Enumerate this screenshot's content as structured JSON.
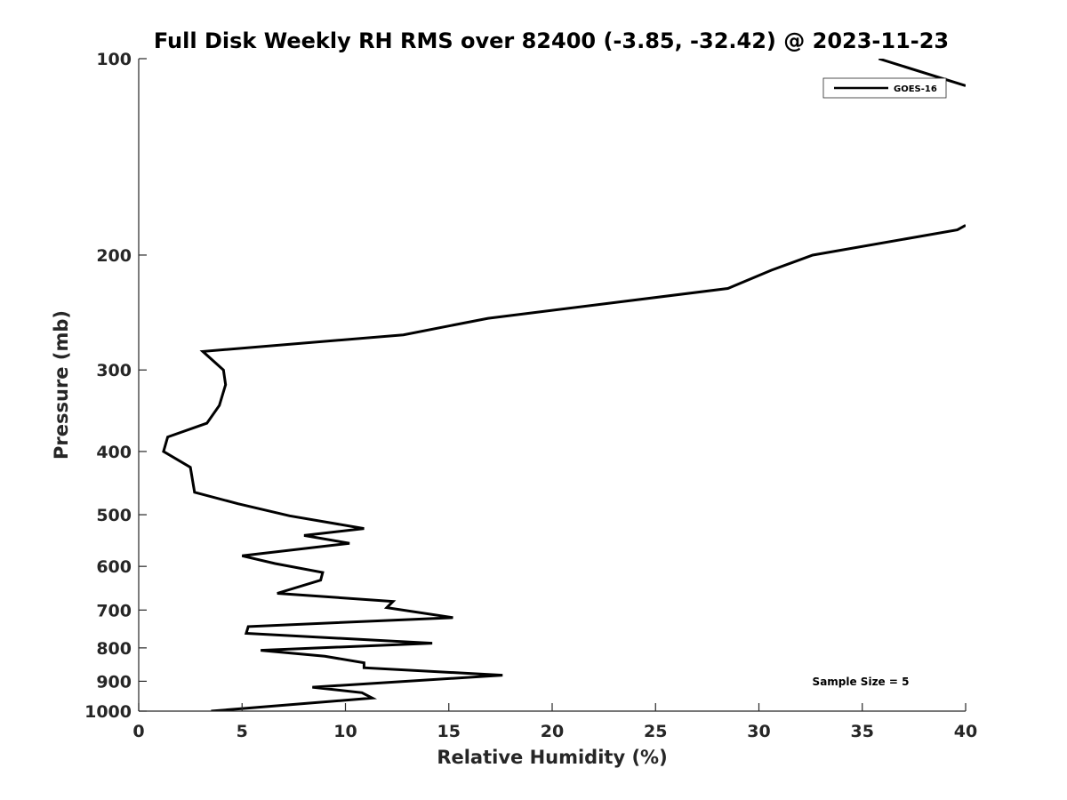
{
  "chart_data": {
    "type": "line",
    "title": "Full Disk Weekly RH RMS over 82400 (-3.85, -32.42) @ 2023-11-23",
    "xlabel": "Relative Humidity (%)",
    "ylabel": "Pressure (mb)",
    "xlim": [
      0,
      40
    ],
    "ylim": [
      100,
      1000
    ],
    "yscale": "log",
    "reversed_y": true,
    "grid": false,
    "x_ticks": [
      0,
      5,
      10,
      15,
      20,
      25,
      30,
      35,
      40
    ],
    "x_tick_labels": [
      "0",
      "5",
      "10",
      "15",
      "20",
      "25",
      "30",
      "35",
      "40"
    ],
    "y_ticks": [
      100,
      200,
      300,
      400,
      500,
      600,
      700,
      800,
      900,
      1000
    ],
    "y_tick_labels": [
      "100",
      "200",
      "300",
      "400",
      "500",
      "600",
      "700",
      "800",
      "900",
      "1000"
    ],
    "legend_position": "top-right",
    "annotation": "Sample Size = 5",
    "series": [
      {
        "name": "GOES-16",
        "color": "#000000",
        "segments": [
          {
            "points": [
              [
                35.8,
                100
              ],
              [
                40,
                110
              ]
            ]
          },
          {
            "points": [
              [
                40,
                180
              ],
              [
                39.6,
                183
              ],
              [
                32.6,
                200
              ],
              [
                30.6,
                211
              ],
              [
                28.5,
                225
              ],
              [
                16.9,
                250
              ],
              [
                12.8,
                265
              ],
              [
                3.1,
                281
              ],
              [
                4.1,
                300
              ],
              [
                4.2,
                316
              ],
              [
                3.9,
                340
              ],
              [
                3.3,
                362
              ],
              [
                1.4,
                380
              ],
              [
                1.2,
                400
              ],
              [
                2.5,
                423
              ],
              [
                2.7,
                462
              ],
              [
                4.8,
                481
              ],
              [
                7.3,
                502
              ],
              [
                10.9,
                525
              ],
              [
                8.0,
                538
              ],
              [
                10.2,
                553
              ],
              [
                5.0,
                578
              ],
              [
                6.6,
                594
              ],
              [
                8.9,
                613
              ],
              [
                8.8,
                630
              ],
              [
                6.7,
                660
              ],
              [
                12.3,
                679
              ],
              [
                12.0,
                694
              ],
              [
                15.2,
                719
              ],
              [
                5.3,
                742
              ],
              [
                5.2,
                760
              ],
              [
                14.2,
                787
              ],
              [
                5.9,
                807
              ],
              [
                9.0,
                824
              ],
              [
                10.9,
                843
              ],
              [
                10.9,
                858
              ],
              [
                17.6,
                881
              ],
              [
                8.4,
                919
              ],
              [
                10.8,
                937
              ],
              [
                11.3,
                955
              ],
              [
                3.5,
                1000
              ]
            ]
          }
        ]
      }
    ]
  }
}
